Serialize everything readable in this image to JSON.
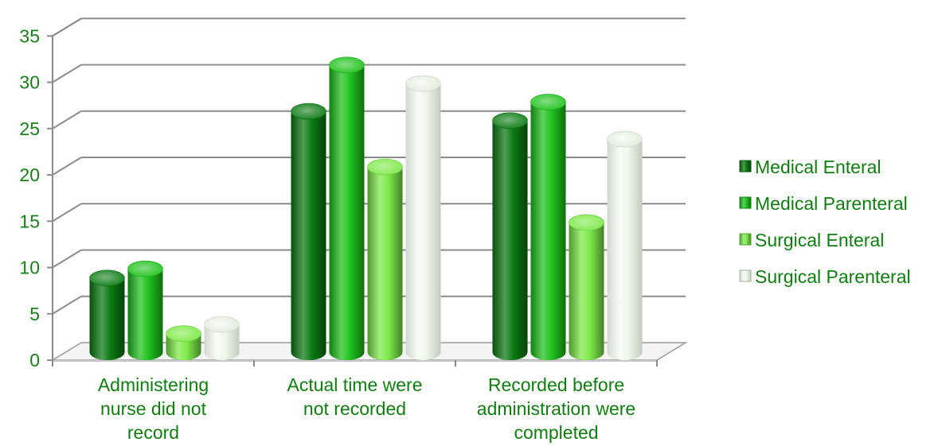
{
  "chart_data": {
    "type": "bar",
    "style": "3d-cylinder",
    "title": "",
    "xlabel": "",
    "ylabel": "",
    "ylim": [
      0,
      35
    ],
    "yticks": [
      0,
      5,
      10,
      15,
      20,
      25,
      30,
      35
    ],
    "grid": true,
    "legend_position": "right",
    "categories": [
      [
        "Administering",
        "nurse did not",
        "record"
      ],
      [
        "Actual time were",
        "not recorded"
      ],
      [
        "Recorded before",
        "administration were",
        "completed"
      ]
    ],
    "series": [
      {
        "name": "Medical Enteral",
        "values": [
          8,
          26,
          25
        ],
        "color": "#0a7a12"
      },
      {
        "name": "Medical Parenteral",
        "values": [
          9,
          31,
          27
        ],
        "color": "#1fc21c"
      },
      {
        "name": "Surgical Enteral",
        "values": [
          2,
          20,
          14
        ],
        "color": "#7cea48"
      },
      {
        "name": "Surgical Parenteral",
        "values": [
          3,
          29,
          23
        ],
        "color": "#eef7ea"
      }
    ],
    "colors": {
      "text": "#107d10",
      "axis_text": "#1a7d1a",
      "grid": "#8c8c8c"
    }
  }
}
